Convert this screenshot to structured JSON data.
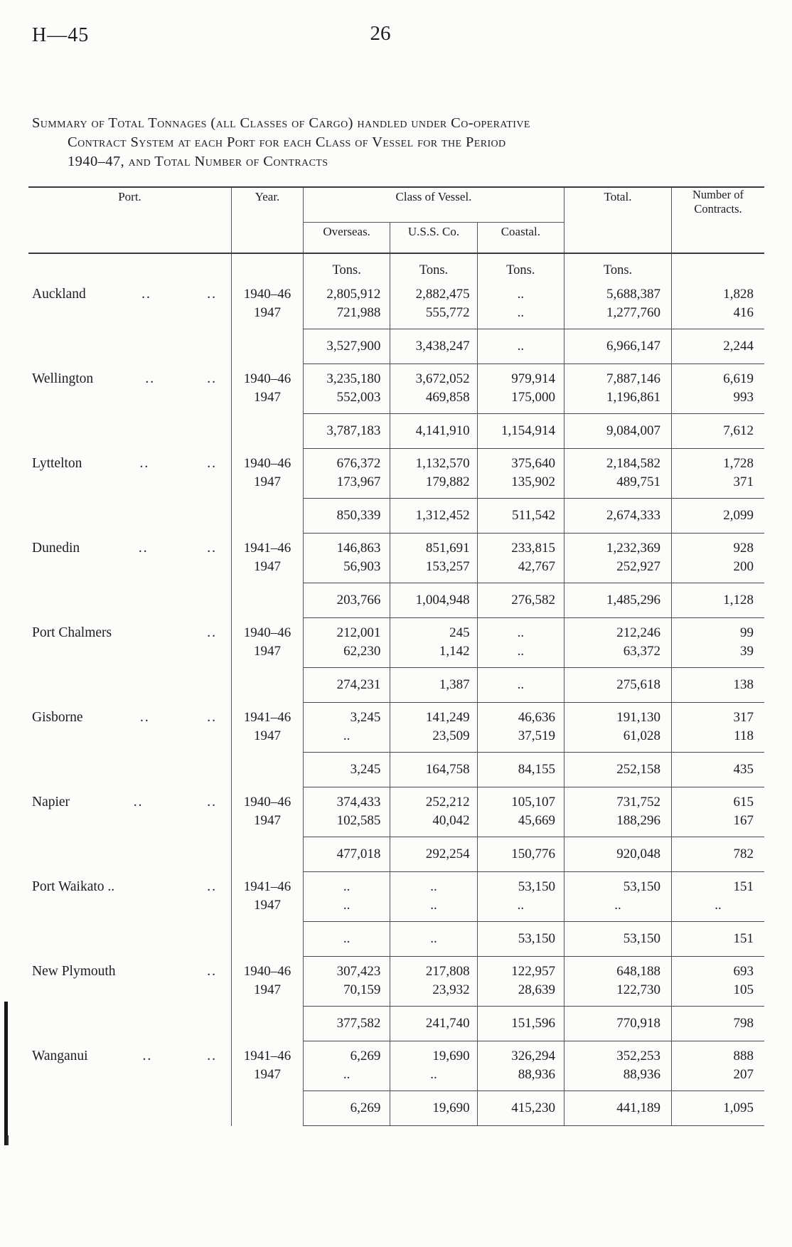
{
  "page": {
    "doc_ref": "H—45",
    "page_number": "26"
  },
  "title": {
    "lines": [
      "Summary of Total Tonnages (all Classes of Cargo) handled under Co-operative",
      "Contract System at each Port for each Class of Vessel for the Period",
      "1940–47, and Total Number of Contracts"
    ]
  },
  "table": {
    "columns": {
      "port": "Port.",
      "year": "Year.",
      "class_of_vessel": "Class of Vessel.",
      "overseas": "Overseas.",
      "uss_co": "U.S.S. Co.",
      "coastal": "Coastal.",
      "total": "Total.",
      "contracts": "Number of Contracts."
    },
    "units_label": "Tons.",
    "leader_marker": "..",
    "empty_marker": "..",
    "groups": [
      {
        "port": "Auckland",
        "leader_dots": 2,
        "rows": [
          {
            "year": "1940–46",
            "overseas": "2,805,912",
            "uss": "2,882,475",
            "coastal": "..",
            "total": "5,688,387",
            "contracts": "1,828"
          },
          {
            "year": "1947",
            "overseas": "721,988",
            "uss": "555,772",
            "coastal": "..",
            "total": "1,277,760",
            "contracts": "416"
          }
        ],
        "subtotal": {
          "overseas": "3,527,900",
          "uss": "3,438,247",
          "coastal": "..",
          "total": "6,966,147",
          "contracts": "2,244"
        }
      },
      {
        "port": "Wellington",
        "leader_dots": 2,
        "rows": [
          {
            "year": "1940–46",
            "overseas": "3,235,180",
            "uss": "3,672,052",
            "coastal": "979,914",
            "total": "7,887,146",
            "contracts": "6,619"
          },
          {
            "year": "1947",
            "overseas": "552,003",
            "uss": "469,858",
            "coastal": "175,000",
            "total": "1,196,861",
            "contracts": "993"
          }
        ],
        "subtotal": {
          "overseas": "3,787,183",
          "uss": "4,141,910",
          "coastal": "1,154,914",
          "total": "9,084,007",
          "contracts": "7,612"
        }
      },
      {
        "port": "Lyttelton",
        "leader_dots": 2,
        "rows": [
          {
            "year": "1940–46",
            "overseas": "676,372",
            "uss": "1,132,570",
            "coastal": "375,640",
            "total": "2,184,582",
            "contracts": "1,728"
          },
          {
            "year": "1947",
            "overseas": "173,967",
            "uss": "179,882",
            "coastal": "135,902",
            "total": "489,751",
            "contracts": "371"
          }
        ],
        "subtotal": {
          "overseas": "850,339",
          "uss": "1,312,452",
          "coastal": "511,542",
          "total": "2,674,333",
          "contracts": "2,099"
        }
      },
      {
        "port": "Dunedin",
        "leader_dots": 2,
        "rows": [
          {
            "year": "1941–46",
            "overseas": "146,863",
            "uss": "851,691",
            "coastal": "233,815",
            "total": "1,232,369",
            "contracts": "928"
          },
          {
            "year": "1947",
            "overseas": "56,903",
            "uss": "153,257",
            "coastal": "42,767",
            "total": "252,927",
            "contracts": "200"
          }
        ],
        "subtotal": {
          "overseas": "203,766",
          "uss": "1,004,948",
          "coastal": "276,582",
          "total": "1,485,296",
          "contracts": "1,128"
        }
      },
      {
        "port": "Port Chalmers",
        "leader_dots": 1,
        "rows": [
          {
            "year": "1940–46",
            "overseas": "212,001",
            "uss": "245",
            "coastal": "..",
            "total": "212,246",
            "contracts": "99"
          },
          {
            "year": "1947",
            "overseas": "62,230",
            "uss": "1,142",
            "coastal": "..",
            "total": "63,372",
            "contracts": "39"
          }
        ],
        "subtotal": {
          "overseas": "274,231",
          "uss": "1,387",
          "coastal": "..",
          "total": "275,618",
          "contracts": "138"
        }
      },
      {
        "port": "Gisborne",
        "leader_dots": 2,
        "rows": [
          {
            "year": "1941–46",
            "overseas": "3,245",
            "uss": "141,249",
            "coastal": "46,636",
            "total": "191,130",
            "contracts": "317"
          },
          {
            "year": "1947",
            "overseas": "..",
            "uss": "23,509",
            "coastal": "37,519",
            "total": "61,028",
            "contracts": "118"
          }
        ],
        "subtotal": {
          "overseas": "3,245",
          "uss": "164,758",
          "coastal": "84,155",
          "total": "252,158",
          "contracts": "435"
        }
      },
      {
        "port": "Napier",
        "leader_dots": 2,
        "rows": [
          {
            "year": "1940–46",
            "overseas": "374,433",
            "uss": "252,212",
            "coastal": "105,107",
            "total": "731,752",
            "contracts": "615"
          },
          {
            "year": "1947",
            "overseas": "102,585",
            "uss": "40,042",
            "coastal": "45,669",
            "total": "188,296",
            "contracts": "167"
          }
        ],
        "subtotal": {
          "overseas": "477,018",
          "uss": "292,254",
          "coastal": "150,776",
          "total": "920,048",
          "contracts": "782"
        }
      },
      {
        "port": "Port Waikato ..",
        "leader_dots": 1,
        "rows": [
          {
            "year": "1941–46",
            "overseas": "..",
            "uss": "..",
            "coastal": "53,150",
            "total": "53,150",
            "contracts": "151"
          },
          {
            "year": "1947",
            "overseas": "..",
            "uss": "..",
            "coastal": "..",
            "total": "..",
            "contracts": ".."
          }
        ],
        "subtotal": {
          "overseas": "..",
          "uss": "..",
          "coastal": "53,150",
          "total": "53,150",
          "contracts": "151"
        }
      },
      {
        "port": "New Plymouth",
        "leader_dots": 1,
        "rows": [
          {
            "year": "1940–46",
            "overseas": "307,423",
            "uss": "217,808",
            "coastal": "122,957",
            "total": "648,188",
            "contracts": "693"
          },
          {
            "year": "1947",
            "overseas": "70,159",
            "uss": "23,932",
            "coastal": "28,639",
            "total": "122,730",
            "contracts": "105"
          }
        ],
        "subtotal": {
          "overseas": "377,582",
          "uss": "241,740",
          "coastal": "151,596",
          "total": "770,918",
          "contracts": "798"
        }
      },
      {
        "port": "Wanganui",
        "leader_dots": 2,
        "rows": [
          {
            "year": "1941–46",
            "overseas": "6,269",
            "uss": "19,690",
            "coastal": "326,294",
            "total": "352,253",
            "contracts": "888"
          },
          {
            "year": "1947",
            "overseas": "..",
            "uss": "..",
            "coastal": "88,936",
            "total": "88,936",
            "contracts": "207"
          }
        ],
        "subtotal": {
          "overseas": "6,269",
          "uss": "19,690",
          "coastal": "415,230",
          "total": "441,189",
          "contracts": "1,095"
        }
      }
    ]
  }
}
